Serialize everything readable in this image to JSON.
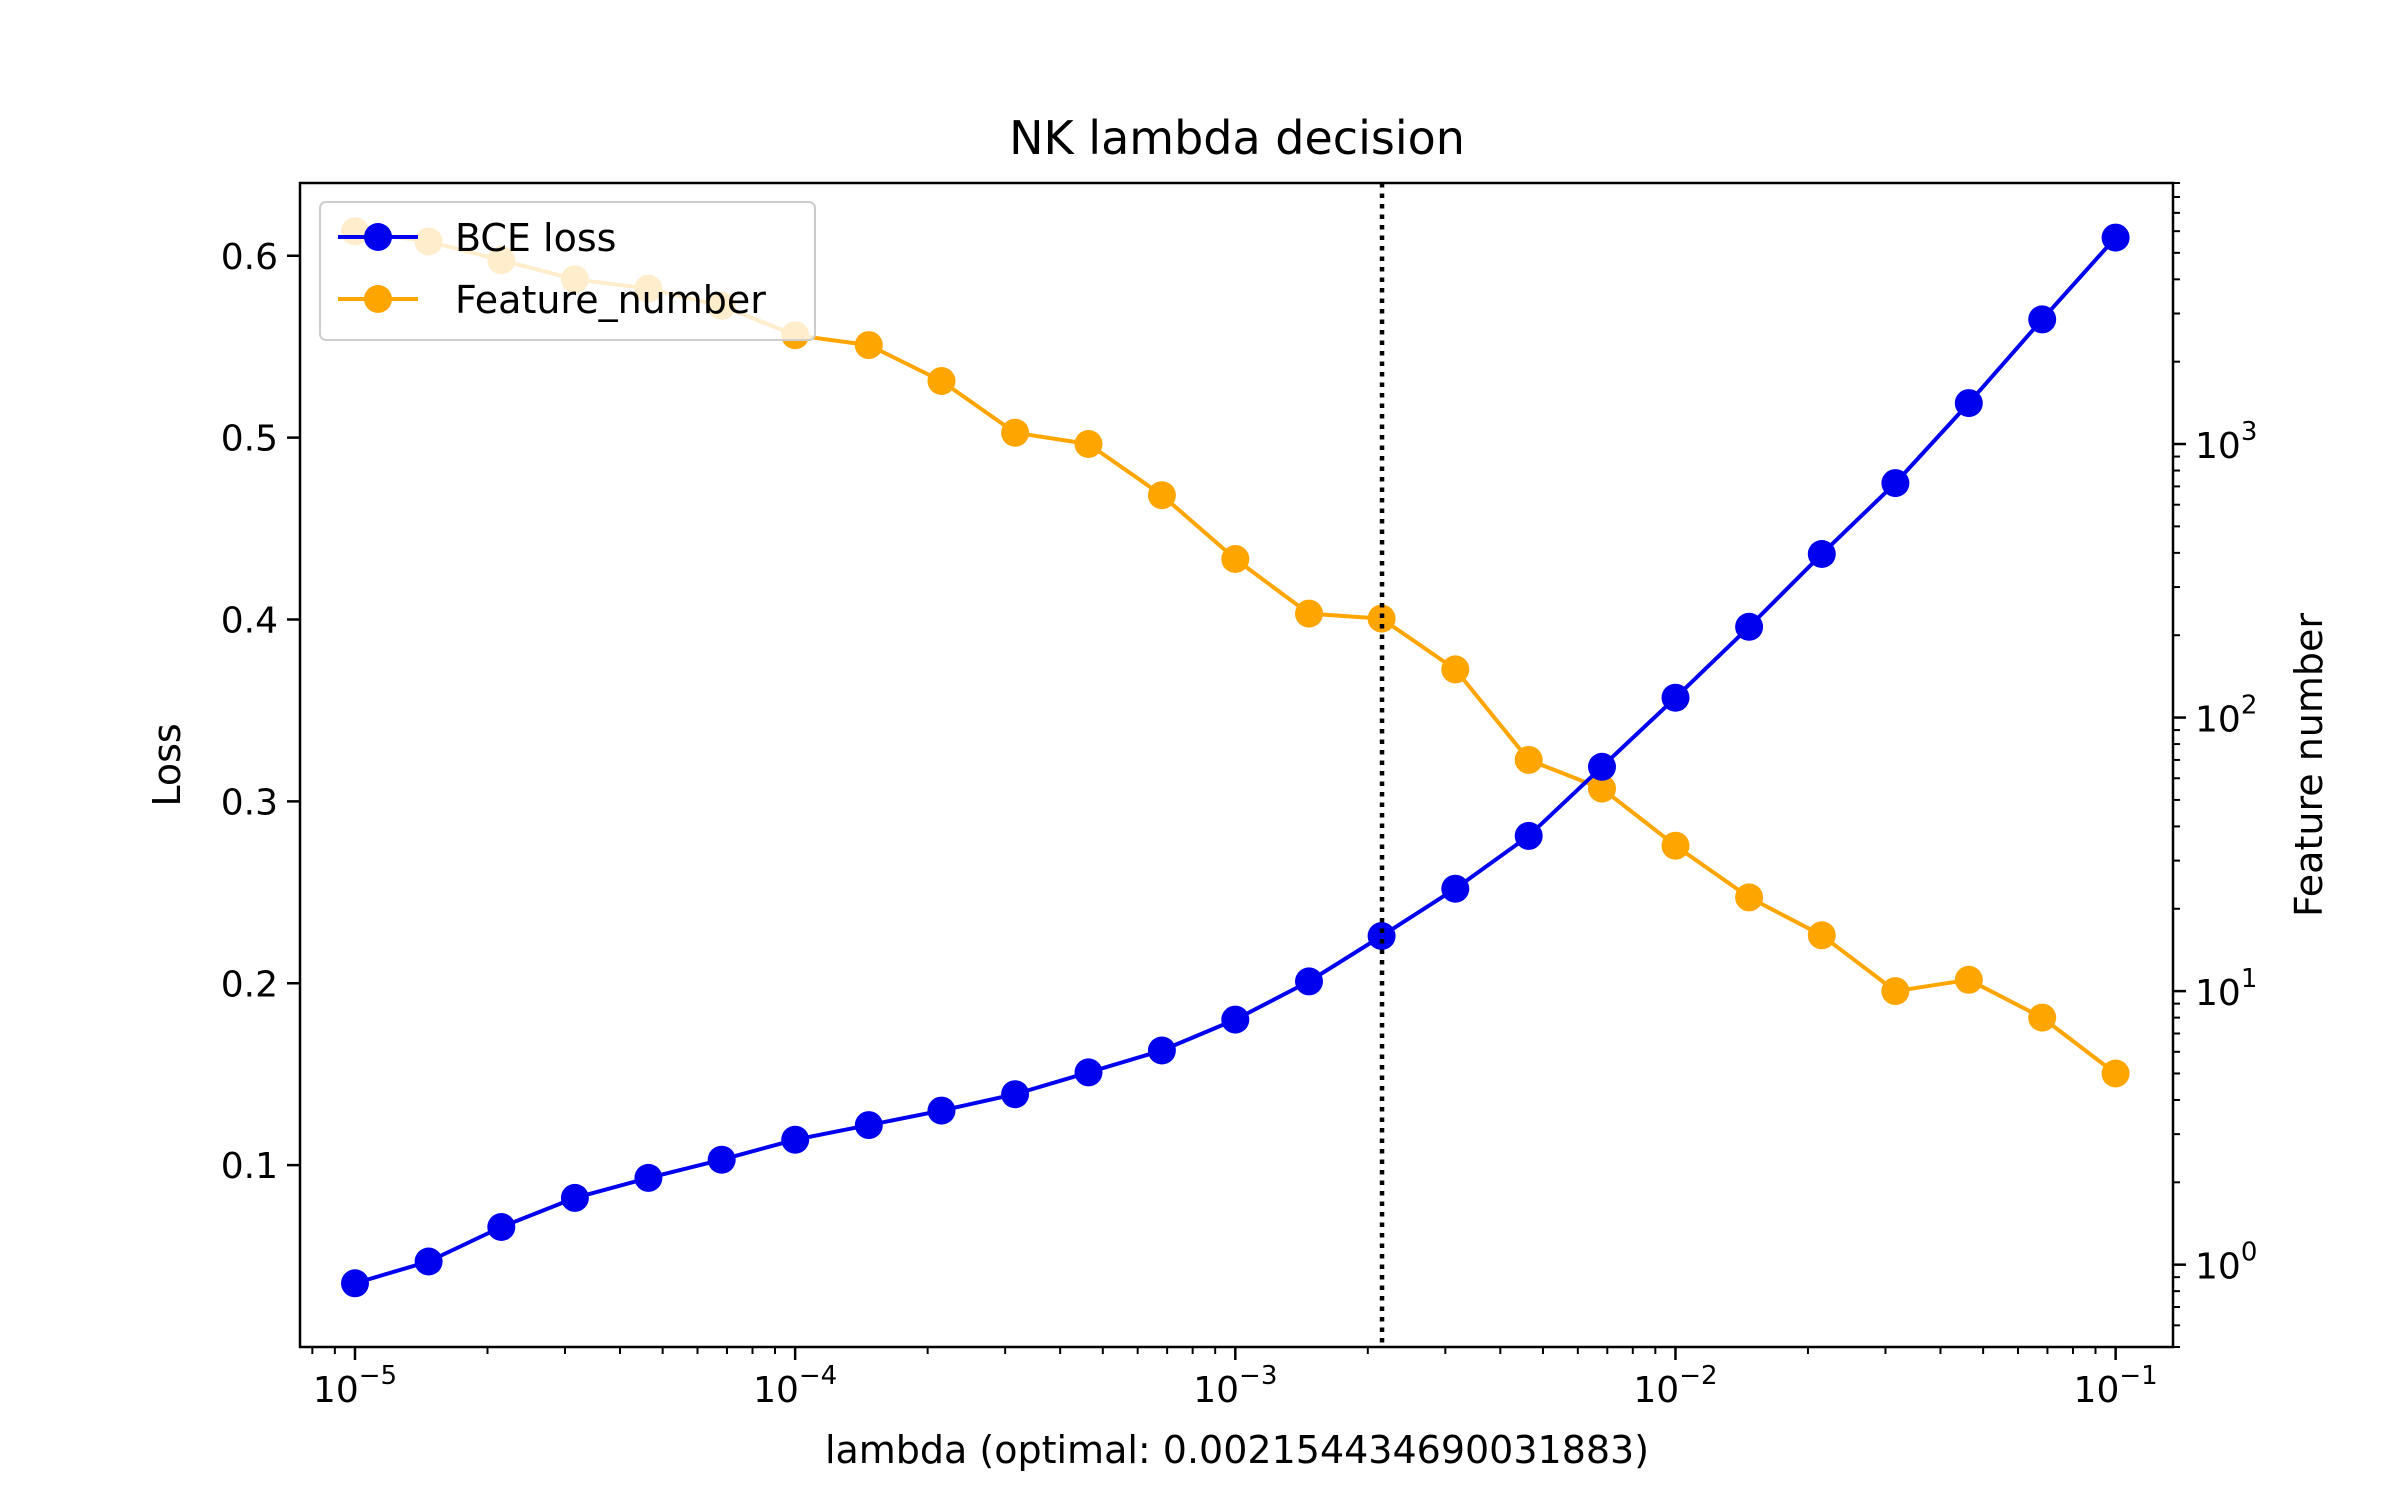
{
  "chart_data": {
    "type": "line",
    "title": "NK lambda decision",
    "xlabel": "lambda (optimal: 0.002154434690031883)",
    "ylabel": "Loss",
    "y2label": "Feature number",
    "x_scale": "log",
    "y2_scale": "log",
    "xlim": [
      7.5e-06,
      0.135
    ],
    "ylim": [
      0.0,
      0.64
    ],
    "y2lim": [
      0.5,
      9000
    ],
    "x_ticks": [
      {
        "value": 1e-05,
        "base": "10",
        "exp": "−5"
      },
      {
        "value": 0.0001,
        "base": "10",
        "exp": "−4"
      },
      {
        "value": 0.001,
        "base": "10",
        "exp": "−3"
      },
      {
        "value": 0.01,
        "base": "10",
        "exp": "−2"
      },
      {
        "value": 0.1,
        "base": "10",
        "exp": "−1"
      }
    ],
    "y_ticks": [
      {
        "value": 0.1,
        "label": "0.1"
      },
      {
        "value": 0.2,
        "label": "0.2"
      },
      {
        "value": 0.3,
        "label": "0.3"
      },
      {
        "value": 0.4,
        "label": "0.4"
      },
      {
        "value": 0.5,
        "label": "0.5"
      },
      {
        "value": 0.6,
        "label": "0.6"
      }
    ],
    "y2_ticks": [
      {
        "value": 1,
        "base": "10",
        "exp": "0"
      },
      {
        "value": 10,
        "base": "10",
        "exp": "1"
      },
      {
        "value": 100,
        "base": "10",
        "exp": "2"
      },
      {
        "value": 1000,
        "base": "10",
        "exp": "3"
      }
    ],
    "x": [
      1e-05,
      1.47e-05,
      2.15e-05,
      3.16e-05,
      4.64e-05,
      6.81e-05,
      0.0001,
      0.000147,
      0.000215,
      0.000316,
      0.000464,
      0.000681,
      0.001,
      0.00147,
      0.00215,
      0.00316,
      0.00464,
      0.00681,
      0.01,
      0.0147,
      0.0215,
      0.0316,
      0.0464,
      0.0681,
      0.1
    ],
    "series": [
      {
        "name": "BCE loss",
        "axis": "left",
        "color": "#0000ee",
        "values": [
          0.035,
          0.047,
          0.066,
          0.082,
          0.093,
          0.103,
          0.114,
          0.122,
          0.13,
          0.139,
          0.151,
          0.163,
          0.18,
          0.201,
          0.226,
          0.252,
          0.281,
          0.319,
          0.357,
          0.396,
          0.436,
          0.475,
          0.519,
          0.565,
          0.61
        ]
      },
      {
        "name": "Feature_number",
        "axis": "right",
        "color": "#ffa500",
        "values": [
          6000,
          5500,
          4700,
          4000,
          3700,
          3200,
          2500,
          2300,
          1700,
          1100,
          1000,
          650,
          380,
          240,
          230,
          150,
          70,
          55,
          34,
          22,
          16,
          10,
          11,
          8,
          5
        ]
      }
    ],
    "vline": {
      "x": 0.002154434690031883,
      "style": "dotted",
      "color": "#000000"
    },
    "legend_position": "top-left"
  }
}
